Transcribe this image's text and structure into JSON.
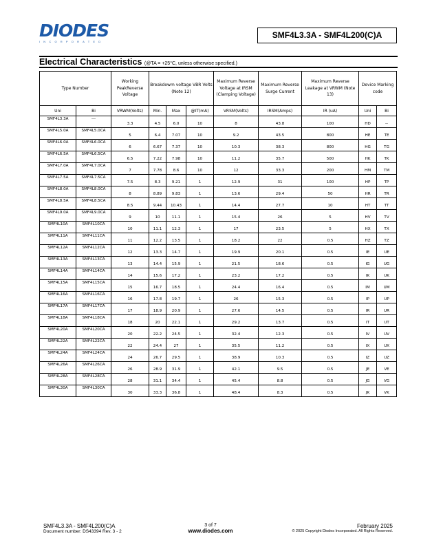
{
  "header": {
    "logo_text": "DIODES",
    "logo_sub": "INCORPORATED",
    "title": "SMF4L3.3A - SMF4L200(C)A"
  },
  "section": {
    "title": "Electrical Characteristics",
    "condition": "(@TA = +25°C, unless otherwise specified.)"
  },
  "table": {
    "headers": {
      "type_number": "Type Number",
      "working": "Working PeakReverse Voltage",
      "breakdown": "Breakdowm voltage VBR Volts (Note 12)",
      "clamping": "Maximum Reverse Voltage at IRSM (Clamping Voltage)",
      "surge": "Maximum Reverse Surge Current",
      "leakage": "Maximum Reverse Leakage at VRWM (Note 13)",
      "marking": "Device Marking code"
    },
    "subheaders": [
      "Uni",
      "Bi",
      "VRWM(Volts)",
      "Min.",
      "Max",
      "@IT(mA)",
      "VRSM(Volts)",
      "IRSM(Amps)",
      "IR (uA)",
      "Uni",
      "Bi"
    ],
    "rows": [
      [
        "SMF4L3.3A",
        "---",
        "3.3",
        "4.5",
        "6.0",
        "10",
        "8",
        "43.8",
        "100",
        "HD",
        "--"
      ],
      [
        "SMF4L5.0A",
        "SMF4L5.0CA",
        "5",
        "6.4",
        "7.07",
        "10",
        "9.2",
        "43.5",
        "800",
        "HE",
        "TE"
      ],
      [
        "SMF4L6.0A",
        "SMF4L6.0CA",
        "6",
        "6.67",
        "7.37",
        "10",
        "10.3",
        "38.3",
        "800",
        "HG",
        "TG"
      ],
      [
        "SMF4L6.5A",
        "SMF4L6.5CA",
        "6.5",
        "7.22",
        "7.98",
        "10",
        "11.2",
        "35.7",
        "500",
        "HK",
        "TK"
      ],
      [
        "SMF4L7.0A",
        "SMF4L7.0CA",
        "7",
        "7.78",
        "8.6",
        "10",
        "12",
        "33.3",
        "200",
        "HM",
        "TM"
      ],
      [
        "SMF4L7.5A",
        "SMF4L7.5CA",
        "7.5",
        "8.3",
        "9.21",
        "1",
        "12.9",
        "31",
        "100",
        "HP",
        "TP"
      ],
      [
        "SMF4L8.0A",
        "SMF4L8.0CA",
        "8",
        "8.89",
        "9.83",
        "1",
        "13.6",
        "29.4",
        "50",
        "HR",
        "TR"
      ],
      [
        "SMF4L8.5A",
        "SMF4L8.5CA",
        "8.5",
        "9.44",
        "10.43",
        "1",
        "14.4",
        "27.7",
        "10",
        "HT",
        "TT"
      ],
      [
        "SMF4L9.0A",
        "SMF4L9.0CA",
        "9",
        "10",
        "11.1",
        "1",
        "15.4",
        "26",
        "5",
        "HV",
        "TV"
      ],
      [
        "SMF4L10A",
        "SMF4L10CA",
        "10",
        "11.1",
        "12.3",
        "1",
        "17",
        "23.5",
        "5",
        "HX",
        "TX"
      ],
      [
        "SMF4L11A",
        "SMF4L11CA",
        "11",
        "12.2",
        "13.5",
        "1",
        "18.2",
        "22",
        "0.5",
        "HZ",
        "TZ"
      ],
      [
        "SMF4L12A",
        "SMF4L12CA",
        "12",
        "13.3",
        "14.7",
        "1",
        "19.9",
        "20.1",
        "0.5",
        "IE",
        "UE"
      ],
      [
        "SMF4L13A",
        "SMF4L13CA",
        "13",
        "14.4",
        "15.9",
        "1",
        "21.5",
        "18.6",
        "0.5",
        "IG",
        "UG"
      ],
      [
        "SMF4L14A",
        "SMF4L14CA",
        "14",
        "15.6",
        "17.2",
        "1",
        "23.2",
        "17.2",
        "0.5",
        "IK",
        "UK"
      ],
      [
        "SMF4L15A",
        "SMF4L15CA",
        "15",
        "16.7",
        "18.5",
        "1",
        "24.4",
        "16.4",
        "0.5",
        "IM",
        "UM"
      ],
      [
        "SMF4L16A",
        "SMF4L16CA",
        "16",
        "17.8",
        "19.7",
        "1",
        "26",
        "15.3",
        "0.5",
        "IP",
        "UP"
      ],
      [
        "SMF4L17A",
        "SMF4L17CA",
        "17",
        "18.9",
        "20.9",
        "1",
        "27.6",
        "14.5",
        "0.5",
        "IR",
        "UR"
      ],
      [
        "SMF4L18A",
        "SMF4L18CA",
        "18",
        "20",
        "22.1",
        "1",
        "29.2",
        "13.7",
        "0.5",
        "IT",
        "UT"
      ],
      [
        "SMF4L20A",
        "SMF4L20CA",
        "20",
        "22.2",
        "24.5",
        "1",
        "32.4",
        "12.3",
        "0.5",
        "IV",
        "UV"
      ],
      [
        "SMF4L22A",
        "SMF4L22CA",
        "22",
        "24.4",
        "27",
        "1",
        "35.5",
        "11.2",
        "0.5",
        "IX",
        "UX"
      ],
      [
        "SMF4L24A",
        "SMF4L24CA",
        "24",
        "26.7",
        "29.5",
        "1",
        "38.9",
        "10.3",
        "0.5",
        "IZ",
        "UZ"
      ],
      [
        "SMF4L26A",
        "SMF4L26CA",
        "26",
        "28.9",
        "31.9",
        "1",
        "42.1",
        "9.5",
        "0.5",
        "JE",
        "VE"
      ],
      [
        "SMF4L28A",
        "SMF4L28CA",
        "28",
        "31.1",
        "34.4",
        "1",
        "45.4",
        "8.8",
        "0.5",
        "JG",
        "VG"
      ],
      [
        "SMF4L30A",
        "SMF4L30CA",
        "30",
        "33.3",
        "36.8",
        "1",
        "48.4",
        "8.3",
        "0.5",
        "JK",
        "VK"
      ]
    ]
  },
  "footer": {
    "part": "SMF4L3.3A - SMF4L200(C)A",
    "doc_number": "Document number: DS43394 Rev. 3 - 2",
    "page": "3 of 7",
    "website": "www.diodes.com",
    "date": "February 2025",
    "copyright": "© 2025 Copyright Diodes Incorporated. All Rights Reserved."
  },
  "colors": {
    "brand": "#1d5aa8"
  }
}
